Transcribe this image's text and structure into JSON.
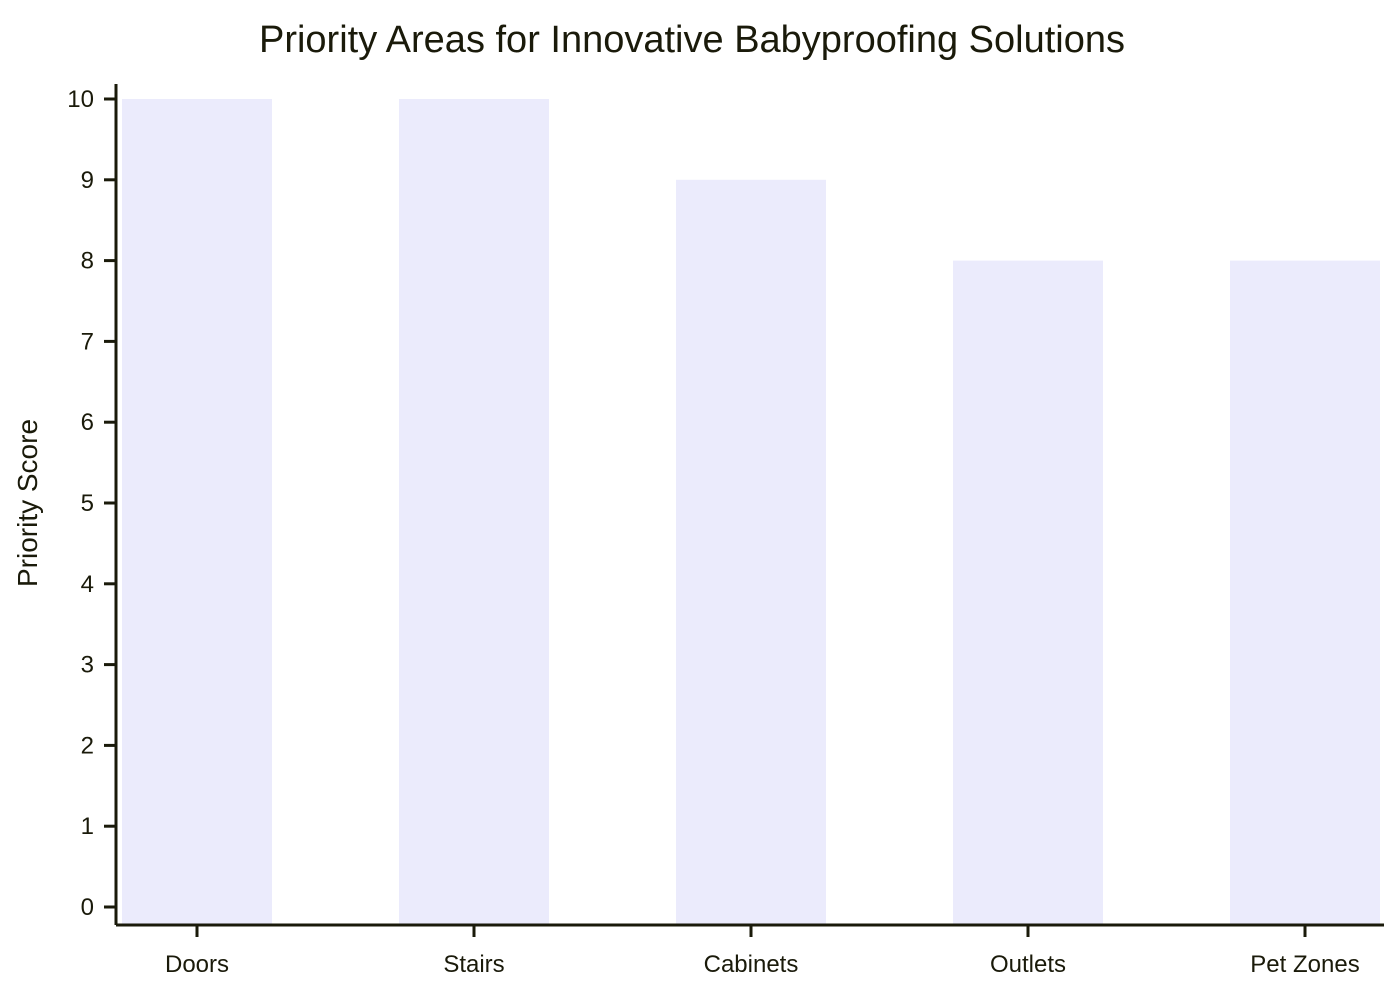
{
  "chart_data": {
    "type": "bar",
    "title": "Priority Areas for Innovative Babyproofing Solutions",
    "xlabel": "",
    "ylabel": "Priority Score",
    "categories": [
      "Doors",
      "Stairs",
      "Cabinets",
      "Outlets",
      "Pet Zones"
    ],
    "values": [
      10,
      10,
      9,
      8,
      8
    ],
    "ylim": [
      0,
      10
    ],
    "yticks": [
      0,
      1,
      2,
      3,
      4,
      5,
      6,
      7,
      8,
      9,
      10
    ],
    "grid": false,
    "legend": "none",
    "colors": {
      "bar": "#ebebfc",
      "axis": "#1a1a0a",
      "text": "#1a1a0a",
      "background": "#ffffff"
    }
  }
}
